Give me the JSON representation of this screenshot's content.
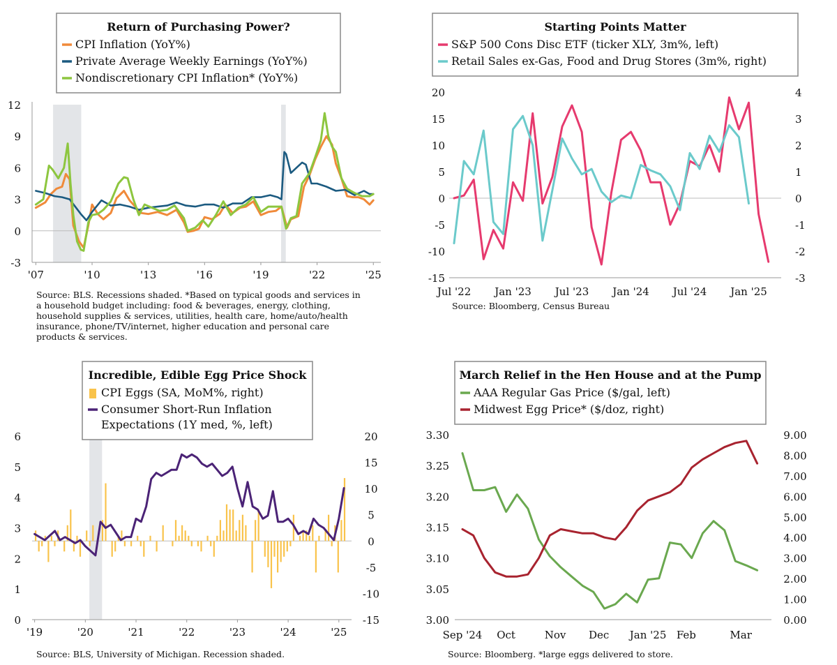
{
  "chart_data": [
    {
      "type": "line",
      "title": "Return of Purchasing Power?",
      "legend": [
        "CPI Inflation (YoY%)",
        "Private Average Weekly Earnings (YoY%)",
        "Nondiscretionary CPI Inflation* (YoY%)"
      ],
      "ylim": [
        -3,
        12
      ],
      "yticks": [
        "12",
        "9",
        "6",
        "3",
        "0",
        "-3"
      ],
      "xticks": [
        "'07",
        "'10",
        "'13",
        "'16",
        "'19",
        "'22",
        "'25"
      ],
      "recessions": [
        [
          2007.92,
          2009.42
        ],
        [
          2020.08,
          2020.33
        ]
      ],
      "series": [
        {
          "name": "CPI Inflation (YoY%)",
          "color": "#f08a3a",
          "x": [
            2007.0,
            2007.5,
            2007.8,
            2008.1,
            2008.4,
            2008.6,
            2008.8,
            2009.0,
            2009.3,
            2009.55,
            2009.8,
            2010.0,
            2010.3,
            2010.6,
            2011.0,
            2011.3,
            2011.7,
            2012.0,
            2012.3,
            2012.6,
            2013.0,
            2013.5,
            2014.0,
            2014.5,
            2014.9,
            2015.1,
            2015.4,
            2015.7,
            2016.0,
            2016.4,
            2016.8,
            2017.1,
            2017.5,
            2017.9,
            2018.2,
            2018.6,
            2019.0,
            2019.4,
            2019.8,
            2020.1,
            2020.4,
            2020.6,
            2021.0,
            2021.3,
            2021.6,
            2021.9,
            2022.2,
            2022.5,
            2022.8,
            2023.0,
            2023.3,
            2023.6,
            2023.9,
            2024.2,
            2024.5,
            2024.8,
            2025.0
          ],
          "y": [
            2.2,
            2.7,
            3.5,
            4.0,
            4.2,
            5.4,
            4.9,
            0.5,
            -1.0,
            -1.6,
            0.5,
            2.5,
            1.6,
            1.1,
            1.7,
            3.1,
            3.8,
            2.9,
            2.3,
            1.7,
            1.6,
            1.8,
            1.5,
            2.0,
            0.8,
            -0.1,
            0.0,
            0.2,
            1.3,
            1.1,
            1.6,
            2.5,
            1.7,
            2.2,
            2.3,
            2.8,
            1.5,
            1.8,
            1.9,
            2.3,
            0.3,
            1.1,
            1.4,
            4.2,
            5.3,
            6.8,
            8.0,
            9.0,
            8.2,
            6.4,
            5.0,
            3.3,
            3.2,
            3.2,
            3.0,
            2.5,
            2.9
          ]
        },
        {
          "name": "Private Average Weekly Earnings (YoY%)",
          "color": "#1b5a80",
          "x": [
            2007.0,
            2007.5,
            2008.0,
            2008.4,
            2008.8,
            2009.1,
            2009.4,
            2009.7,
            2010.0,
            2010.5,
            2011.0,
            2011.5,
            2012.0,
            2012.5,
            2013.0,
            2013.5,
            2014.0,
            2014.5,
            2015.0,
            2015.5,
            2016.0,
            2016.5,
            2017.0,
            2017.5,
            2018.0,
            2018.5,
            2019.0,
            2019.5,
            2019.9,
            2020.1,
            2020.25,
            2020.35,
            2020.6,
            2020.9,
            2021.2,
            2021.4,
            2021.7,
            2022.0,
            2022.5,
            2023.0,
            2023.5,
            2024.0,
            2024.5,
            2024.8,
            2025.0
          ],
          "y": [
            3.8,
            3.6,
            3.3,
            3.2,
            3.0,
            2.3,
            1.6,
            1.0,
            1.8,
            2.9,
            2.4,
            2.5,
            2.3,
            2.0,
            2.2,
            2.3,
            2.4,
            2.7,
            2.4,
            2.3,
            2.5,
            2.5,
            2.2,
            2.6,
            2.6,
            3.2,
            3.2,
            3.4,
            3.2,
            3.0,
            7.5,
            7.3,
            5.5,
            6.0,
            6.5,
            6.3,
            4.5,
            4.5,
            4.2,
            3.8,
            3.9,
            3.4,
            3.8,
            3.5,
            3.5
          ]
        },
        {
          "name": "Nondiscretionary CPI Inflation* (YoY%)",
          "color": "#8dc63f",
          "x": [
            2007.0,
            2007.4,
            2007.7,
            2007.9,
            2008.2,
            2008.5,
            2008.7,
            2008.85,
            2009.0,
            2009.2,
            2009.4,
            2009.55,
            2009.8,
            2010.0,
            2010.3,
            2010.6,
            2011.0,
            2011.4,
            2011.7,
            2011.9,
            2012.2,
            2012.5,
            2012.8,
            2013.2,
            2013.6,
            2014.0,
            2014.4,
            2014.9,
            2015.1,
            2015.5,
            2015.9,
            2016.2,
            2016.6,
            2017.0,
            2017.4,
            2017.8,
            2018.2,
            2018.6,
            2019.0,
            2019.4,
            2019.8,
            2020.1,
            2020.35,
            2020.6,
            2020.9,
            2021.2,
            2021.6,
            2021.9,
            2022.2,
            2022.4,
            2022.6,
            2022.8,
            2023.0,
            2023.3,
            2023.6,
            2024.0,
            2024.4,
            2024.8,
            2025.0
          ],
          "y": [
            2.5,
            3.0,
            6.2,
            5.8,
            5.0,
            6.0,
            8.3,
            4.5,
            1.5,
            -1.0,
            -1.8,
            -1.9,
            0.8,
            1.5,
            1.6,
            2.0,
            2.8,
            4.5,
            5.1,
            5.0,
            3.0,
            1.5,
            2.5,
            2.2,
            1.9,
            2.0,
            2.4,
            1.2,
            0.0,
            0.3,
            1.0,
            0.4,
            1.5,
            2.8,
            1.5,
            2.2,
            2.5,
            3.2,
            1.8,
            2.3,
            2.3,
            2.3,
            0.2,
            1.2,
            1.4,
            4.5,
            5.5,
            7.0,
            8.6,
            11.2,
            9.0,
            8.0,
            7.5,
            5.0,
            4.0,
            3.6,
            3.3,
            3.3,
            3.5
          ]
        }
      ]
    },
    {
      "type": "line",
      "title": "Starting Points Matter",
      "legend": [
        "S&P 500 Cons Disc ETF (ticker XLY, 3m%, left)",
        "Retail Sales ex-Gas, Food and Drug Stores (3m%, right)"
      ],
      "ylim_left": [
        -15,
        20
      ],
      "ylim_right": [
        -3,
        4
      ],
      "yticks_left": [
        "20",
        "15",
        "10",
        "5",
        "0",
        "-5",
        "-10",
        "-15"
      ],
      "yticks_right": [
        "4",
        "3",
        "2",
        "1",
        "0",
        "-1",
        "-2",
        "-3"
      ],
      "xticks": [
        "Jul '22",
        "Jan '23",
        "Jul '23",
        "Jan '24",
        "Jul '24",
        "Jan '25"
      ],
      "series": [
        {
          "name": "S&P 500 Cons Disc ETF (ticker XLY, 3m%, left)",
          "color": "#e63a6e",
          "axis": "left",
          "x": [
            0,
            1,
            2,
            3,
            4,
            5,
            6,
            7,
            8,
            9,
            10,
            11,
            12,
            13,
            14,
            15,
            16,
            17,
            18,
            19,
            20,
            21,
            22,
            23,
            24,
            25,
            26,
            27,
            28,
            29,
            30,
            31
          ],
          "y": [
            0,
            0.5,
            3.5,
            -11.5,
            -6.0,
            -9.5,
            3.0,
            -0.5,
            16.0,
            -1.0,
            4.0,
            13.5,
            17.5,
            12.5,
            -5.5,
            -12.5,
            1.0,
            11.0,
            12.5,
            9.0,
            3.0,
            3.0,
            -5.0,
            -1.0,
            7.0,
            6.0,
            10.0,
            5.0,
            19.0,
            13.0,
            18.0,
            -3.0
          ]
        },
        {
          "name": "Retail Sales ex-Gas, Food and Drug Stores (3m%, right)",
          "color": "#6bcacb",
          "axis": "right",
          "x": [
            0,
            1,
            2,
            3,
            4,
            5,
            6,
            7,
            8,
            9,
            10,
            11,
            12,
            13,
            14,
            15,
            16,
            17,
            18,
            19,
            20,
            21,
            22,
            23,
            24,
            25,
            26,
            27,
            28,
            29,
            30
          ],
          "y": [
            -1.7,
            1.4,
            0.9,
            2.55,
            -0.9,
            -1.35,
            2.6,
            3.1,
            2.0,
            -1.6,
            0.3,
            2.25,
            1.5,
            0.9,
            1.1,
            0.25,
            -0.15,
            0.1,
            0.0,
            1.25,
            1.05,
            0.9,
            0.45,
            -0.45,
            1.7,
            1.1,
            2.35,
            1.75,
            2.75,
            2.3,
            -0.2
          ]
        }
      ],
      "x_extra": {
        "sp500_last_month": 32,
        "sp500_last_value": -12.0
      }
    },
    {
      "type": "bar+line",
      "title": "Incredible, Edible Egg Price Shock",
      "legend": [
        "CPI Eggs (SA, MoM%, right)",
        "Consumer Short-Run Inflation Expectations (1Y med, %, left)"
      ],
      "ylim_left": [
        0,
        6
      ],
      "ylim_right": [
        -15,
        20
      ],
      "yticks_left": [
        "6",
        "5",
        "4",
        "3",
        "2",
        "1",
        "0"
      ],
      "yticks_right": [
        "20",
        "15",
        "10",
        "5",
        "0",
        "-5",
        "-10",
        "-15"
      ],
      "xticks": [
        "'19",
        "'20",
        "'21",
        "'22",
        "'23",
        "'24",
        "'25"
      ],
      "recessions": [
        [
          2020.08,
          2020.33
        ]
      ],
      "bars_color": "#f9c34b",
      "bars": [
        2,
        -2,
        -1,
        1,
        -4,
        1,
        -1,
        2,
        0,
        -2,
        3,
        6,
        -2,
        1,
        -3,
        0,
        2,
        -1,
        3,
        0,
        0,
        4,
        11,
        0,
        -3,
        -2,
        1,
        2,
        -1,
        0,
        -1,
        0,
        1,
        -1,
        -3,
        0,
        1,
        0,
        -2,
        0,
        3,
        0,
        0,
        -1,
        4,
        1,
        3,
        2,
        1,
        -1,
        0,
        -1,
        -2,
        0,
        1,
        -1,
        -3,
        1,
        4,
        2,
        7,
        6,
        6,
        2,
        4,
        5,
        3,
        0,
        -6,
        4,
        6,
        0,
        -3,
        -5,
        -9,
        -3,
        -6,
        -4,
        -3,
        -2,
        -1,
        5,
        0,
        1,
        2,
        2,
        1,
        3,
        -6,
        1,
        0,
        2,
        5,
        -1,
        3,
        -6,
        4,
        12,
        0
      ],
      "line": {
        "name": "Consumer Short-Run Inflation Expectations (1Y med, %, left)",
        "color": "#4b2376",
        "x": [
          2019.0,
          2019.2,
          2019.4,
          2019.5,
          2019.6,
          2019.8,
          2019.9,
          2020.0,
          2020.2,
          2020.3,
          2020.4,
          2020.5,
          2020.7,
          2020.8,
          2020.9,
          2021.0,
          2021.1,
          2021.2,
          2021.3,
          2021.4,
          2021.5,
          2021.6,
          2021.7,
          2021.8,
          2021.9,
          2022.0,
          2022.1,
          2022.2,
          2022.3,
          2022.4,
          2022.5,
          2022.6,
          2022.7,
          2022.8,
          2022.9,
          2023.0,
          2023.1,
          2023.2,
          2023.3,
          2023.4,
          2023.5,
          2023.6,
          2023.7,
          2023.8,
          2023.9,
          2024.0,
          2024.1,
          2024.2,
          2024.3,
          2024.4,
          2024.5,
          2024.6,
          2024.7,
          2024.8,
          2024.9,
          2025.0,
          2025.1
        ],
        "y": [
          2.8,
          2.6,
          2.9,
          2.6,
          2.7,
          2.5,
          2.6,
          2.4,
          2.1,
          3.2,
          3.0,
          3.1,
          2.6,
          2.7,
          2.7,
          3.3,
          3.2,
          3.7,
          4.6,
          4.8,
          4.7,
          4.8,
          4.9,
          4.9,
          5.4,
          5.3,
          5.4,
          5.3,
          5.1,
          5.0,
          5.1,
          4.9,
          4.7,
          4.8,
          5.0,
          4.3,
          3.7,
          4.5,
          3.7,
          3.6,
          3.3,
          3.4,
          4.2,
          3.2,
          3.2,
          3.3,
          3.1,
          2.8,
          2.9,
          2.8,
          3.3,
          3.1,
          3.0,
          2.8,
          2.6,
          3.3,
          4.3
        ]
      }
    },
    {
      "type": "line",
      "title": "March Relief in the Hen House and at the Pump",
      "legend": [
        "AAA Regular Gas Price ($/gal, left)",
        "Midwest Egg Price* ($/doz, right)"
      ],
      "ylim_left": [
        3.0,
        3.3
      ],
      "ylim_right": [
        0,
        9
      ],
      "yticks_left": [
        "3.30",
        "3.25",
        "3.20",
        "3.15",
        "3.10",
        "3.05",
        "3.00"
      ],
      "yticks_right": [
        "9.00",
        "8.00",
        "7.00",
        "6.00",
        "5.00",
        "4.00",
        "3.00",
        "2.00",
        "1.00",
        "0.00"
      ],
      "xticks": [
        "Sep '24",
        "Oct",
        "Nov",
        "Dec",
        "Jan '25",
        "Feb",
        "Mar"
      ],
      "series": [
        {
          "name": "AAA Regular Gas Price ($/gal, left)",
          "color": "#6aa84f",
          "axis": "left",
          "x": [
            0,
            1,
            2,
            3,
            4,
            5,
            6,
            7,
            8,
            9,
            10,
            11,
            12,
            13,
            14,
            15,
            16,
            17,
            18,
            19,
            20,
            21,
            22,
            23,
            24,
            25,
            26,
            27
          ],
          "y": [
            3.27,
            3.21,
            3.21,
            3.215,
            3.175,
            3.203,
            3.18,
            3.13,
            3.103,
            3.085,
            3.07,
            3.055,
            3.045,
            3.018,
            3.025,
            3.042,
            3.028,
            3.065,
            3.067,
            3.125,
            3.122,
            3.1,
            3.14,
            3.16,
            3.145,
            3.095,
            3.088,
            3.08
          ]
        },
        {
          "name": "Midwest Egg Price* ($/doz, right)",
          "color": "#a8232f",
          "axis": "right",
          "x": [
            0,
            1,
            2,
            3,
            4,
            5,
            6,
            7,
            8,
            9,
            10,
            11,
            12,
            13,
            14,
            15,
            16,
            17,
            18,
            19,
            20,
            21,
            22,
            23,
            24,
            25,
            26,
            27
          ],
          "y": [
            4.4,
            4.1,
            3.0,
            2.3,
            2.1,
            2.1,
            2.2,
            3.0,
            4.1,
            4.4,
            4.3,
            4.2,
            4.2,
            4.0,
            3.9,
            4.5,
            5.3,
            5.8,
            6.0,
            6.2,
            6.6,
            7.4,
            7.8,
            8.1,
            8.4,
            8.6,
            8.7,
            7.6
          ]
        }
      ]
    }
  ],
  "sources": {
    "p1": "Source: BLS. Recessions shaded. *Based on typical goods and services in a household budget including: food & beverages, energy, clothing, household supplies & services, utilities, health care, home/auto/health insurance, phone/TV/internet, higher education and personal care products & services.",
    "p2": "Source: Bloomberg, Census Bureau",
    "p3": "Source: BLS, University of Michigan. Recession shaded.",
    "p4": "Source: Bloomberg. *large eggs delivered to store."
  }
}
